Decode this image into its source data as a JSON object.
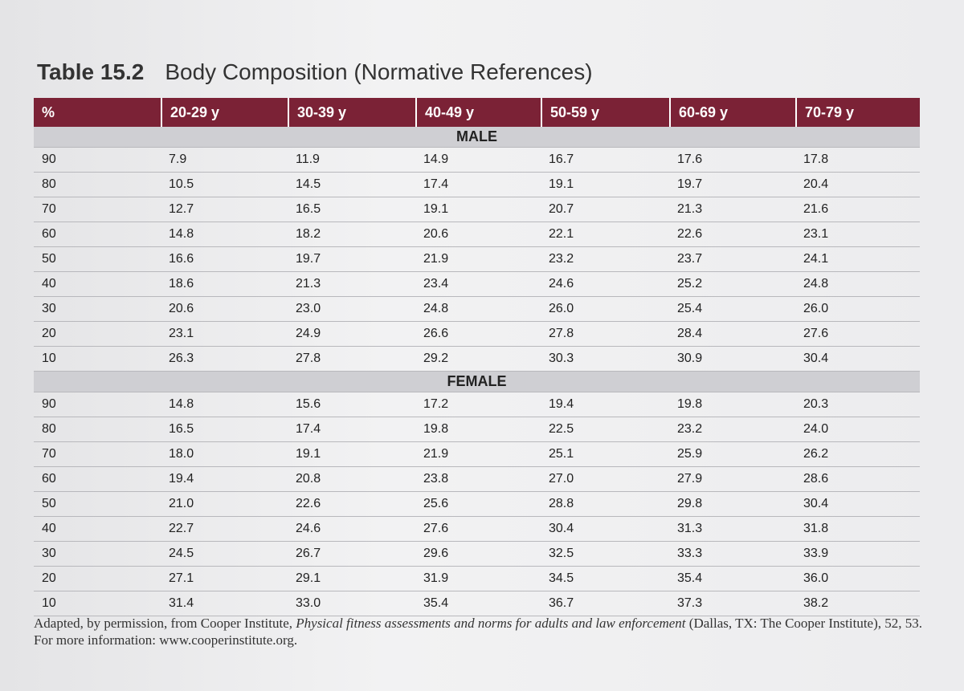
{
  "header": {
    "label": "Table 15.2",
    "title": "Body Composition (Normative References)"
  },
  "table": {
    "columns": [
      "%",
      "20-29 y",
      "30-39 y",
      "40-49 y",
      "50-59 y",
      "60-69 y",
      "70-79 y"
    ],
    "sections": [
      {
        "name": "MALE",
        "rows": [
          [
            "90",
            "7.9",
            "11.9",
            "14.9",
            "16.7",
            "17.6",
            "17.8"
          ],
          [
            "80",
            "10.5",
            "14.5",
            "17.4",
            "19.1",
            "19.7",
            "20.4"
          ],
          [
            "70",
            "12.7",
            "16.5",
            "19.1",
            "20.7",
            "21.3",
            "21.6"
          ],
          [
            "60",
            "14.8",
            "18.2",
            "20.6",
            "22.1",
            "22.6",
            "23.1"
          ],
          [
            "50",
            "16.6",
            "19.7",
            "21.9",
            "23.2",
            "23.7",
            "24.1"
          ],
          [
            "40",
            "18.6",
            "21.3",
            "23.4",
            "24.6",
            "25.2",
            "24.8"
          ],
          [
            "30",
            "20.6",
            "23.0",
            "24.8",
            "26.0",
            "25.4",
            "26.0"
          ],
          [
            "20",
            "23.1",
            "24.9",
            "26.6",
            "27.8",
            "28.4",
            "27.6"
          ],
          [
            "10",
            "26.3",
            "27.8",
            "29.2",
            "30.3",
            "30.9",
            "30.4"
          ]
        ]
      },
      {
        "name": "FEMALE",
        "rows": [
          [
            "90",
            "14.8",
            "15.6",
            "17.2",
            "19.4",
            "19.8",
            "20.3"
          ],
          [
            "80",
            "16.5",
            "17.4",
            "19.8",
            "22.5",
            "23.2",
            "24.0"
          ],
          [
            "70",
            "18.0",
            "19.1",
            "21.9",
            "25.1",
            "25.9",
            "26.2"
          ],
          [
            "60",
            "19.4",
            "20.8",
            "23.8",
            "27.0",
            "27.9",
            "28.6"
          ],
          [
            "50",
            "21.0",
            "22.6",
            "25.6",
            "28.8",
            "29.8",
            "30.4"
          ],
          [
            "40",
            "22.7",
            "24.6",
            "27.6",
            "30.4",
            "31.3",
            "31.8"
          ],
          [
            "30",
            "24.5",
            "26.7",
            "29.6",
            "32.5",
            "33.3",
            "33.9"
          ],
          [
            "20",
            "27.1",
            "29.1",
            "31.9",
            "34.5",
            "35.4",
            "36.0"
          ],
          [
            "10",
            "31.4",
            "33.0",
            "35.4",
            "36.7",
            "37.3",
            "38.2"
          ]
        ]
      }
    ]
  },
  "footnote": {
    "before": "Adapted, by permission, from Cooper Institute, ",
    "italic": "Physical fitness assessments and norms for adults and law enforcement",
    "after": " (Dallas, TX: The Cooper Institute), 52, 53. For more information: www.cooperinstitute.org."
  }
}
